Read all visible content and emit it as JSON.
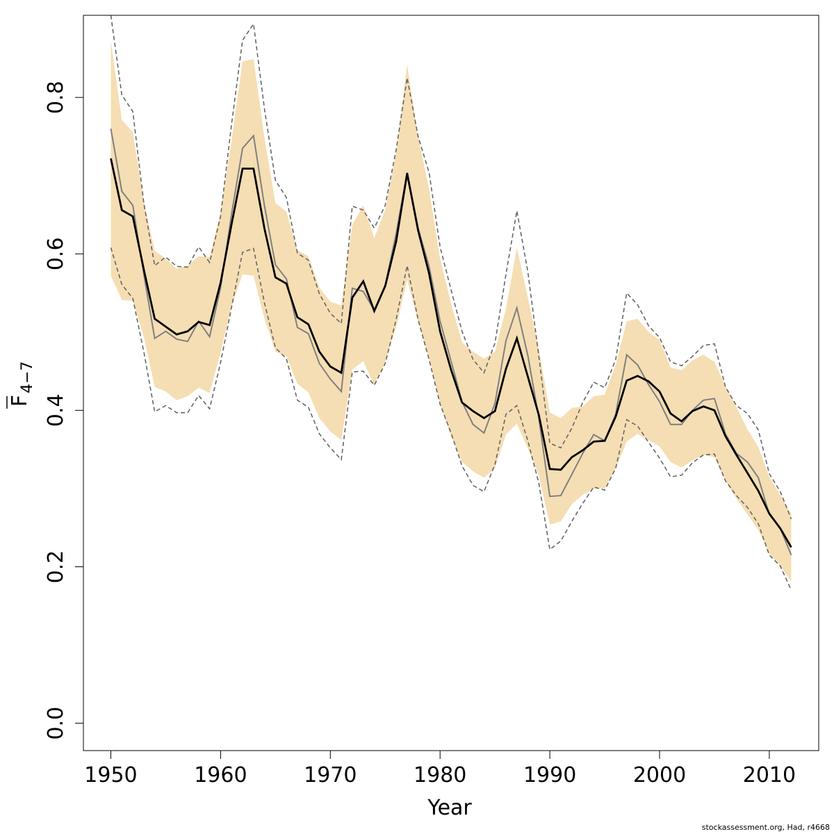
{
  "chart_data": {
    "type": "line",
    "xlabel": "Year",
    "ylabel_main": "F",
    "ylabel_sub": "4−7",
    "xlim": [
      1947.5,
      2014.5
    ],
    "ylim": [
      -0.035,
      0.905
    ],
    "x_ticks": [
      1950,
      1960,
      1970,
      1980,
      1990,
      2000,
      2010
    ],
    "x_tick_labels": [
      "1950",
      "1960",
      "1970",
      "1980",
      "1990",
      "2000",
      "2010"
    ],
    "y_ticks": [
      0.0,
      0.2,
      0.4,
      0.6,
      0.8
    ],
    "y_tick_labels": [
      "0.0",
      "0.2",
      "0.4",
      "0.6",
      "0.8"
    ],
    "colors": {
      "band": "#f5deb3",
      "estimate": "#000000",
      "alt": "#7f7f7f",
      "dashed": "#666666"
    },
    "years": [
      1950,
      1951,
      1952,
      1953,
      1954,
      1955,
      1956,
      1957,
      1958,
      1959,
      1960,
      1961,
      1962,
      1963,
      1964,
      1965,
      1966,
      1967,
      1968,
      1969,
      1970,
      1971,
      1972,
      1973,
      1974,
      1975,
      1976,
      1977,
      1978,
      1979,
      1980,
      1981,
      1982,
      1983,
      1984,
      1985,
      1986,
      1987,
      1988,
      1989,
      1990,
      1991,
      1992,
      1993,
      1994,
      1995,
      1996,
      1997,
      1998,
      1999,
      2000,
      2001,
      2002,
      2003,
      2004,
      2005,
      2006,
      2007,
      2008,
      2009,
      2010,
      2011,
      2012
    ],
    "series": [
      {
        "role": "estimate",
        "values": [
          0.722,
          0.656,
          0.648,
          0.58,
          0.517,
          0.507,
          0.497,
          0.501,
          0.513,
          0.509,
          0.563,
          0.638,
          0.709,
          0.709,
          0.632,
          0.57,
          0.562,
          0.519,
          0.51,
          0.475,
          0.456,
          0.448,
          0.544,
          0.565,
          0.527,
          0.559,
          0.616,
          0.703,
          0.63,
          0.575,
          0.501,
          0.452,
          0.41,
          0.399,
          0.39,
          0.399,
          0.453,
          0.492,
          0.443,
          0.394,
          0.325,
          0.324,
          0.34,
          0.349,
          0.36,
          0.361,
          0.392,
          0.438,
          0.444,
          0.437,
          0.424,
          0.396,
          0.386,
          0.399,
          0.405,
          0.4,
          0.367,
          0.343,
          0.32,
          0.297,
          0.268,
          0.249,
          0.225
        ]
      },
      {
        "role": "alt",
        "values": [
          0.76,
          0.68,
          0.662,
          0.574,
          0.492,
          0.501,
          0.491,
          0.488,
          0.514,
          0.494,
          0.557,
          0.651,
          0.735,
          0.751,
          0.661,
          0.586,
          0.568,
          0.506,
          0.498,
          0.46,
          0.44,
          0.424,
          0.556,
          0.552,
          0.528,
          0.56,
          0.626,
          0.704,
          0.633,
          0.584,
          0.514,
          0.463,
          0.411,
          0.382,
          0.371,
          0.409,
          0.489,
          0.531,
          0.47,
          0.39,
          0.29,
          0.291,
          0.318,
          0.345,
          0.369,
          0.361,
          0.395,
          0.471,
          0.458,
          0.433,
          0.411,
          0.382,
          0.382,
          0.4,
          0.413,
          0.415,
          0.37,
          0.345,
          0.334,
          0.314,
          0.267,
          0.249,
          0.215
        ]
      },
      {
        "role": "upper-ci",
        "values": [
          0.905,
          0.803,
          0.782,
          0.665,
          0.585,
          0.596,
          0.584,
          0.583,
          0.609,
          0.589,
          0.648,
          0.766,
          0.873,
          0.894,
          0.785,
          0.694,
          0.672,
          0.601,
          0.592,
          0.549,
          0.524,
          0.511,
          0.661,
          0.656,
          0.633,
          0.662,
          0.733,
          0.825,
          0.75,
          0.704,
          0.609,
          0.554,
          0.501,
          0.465,
          0.448,
          0.486,
          0.574,
          0.655,
          0.577,
          0.469,
          0.358,
          0.352,
          0.377,
          0.41,
          0.436,
          0.429,
          0.465,
          0.55,
          0.535,
          0.508,
          0.493,
          0.462,
          0.457,
          0.469,
          0.483,
          0.485,
          0.43,
          0.406,
          0.396,
          0.375,
          0.319,
          0.296,
          0.261
        ]
      },
      {
        "role": "lower-ci",
        "values": [
          0.608,
          0.561,
          0.543,
          0.475,
          0.398,
          0.406,
          0.397,
          0.397,
          0.419,
          0.402,
          0.461,
          0.532,
          0.602,
          0.607,
          0.537,
          0.48,
          0.466,
          0.413,
          0.404,
          0.37,
          0.352,
          0.337,
          0.449,
          0.45,
          0.432,
          0.46,
          0.516,
          0.585,
          0.516,
          0.465,
          0.408,
          0.371,
          0.329,
          0.304,
          0.296,
          0.331,
          0.395,
          0.406,
          0.361,
          0.307,
          0.222,
          0.233,
          0.258,
          0.281,
          0.302,
          0.298,
          0.326,
          0.388,
          0.38,
          0.359,
          0.339,
          0.315,
          0.317,
          0.333,
          0.343,
          0.344,
          0.31,
          0.291,
          0.276,
          0.255,
          0.215,
          0.201,
          0.17
        ]
      },
      {
        "role": "band-upper",
        "values": [
          0.872,
          0.771,
          0.756,
          0.667,
          0.604,
          0.594,
          0.581,
          0.585,
          0.597,
          0.596,
          0.653,
          0.745,
          0.846,
          0.849,
          0.748,
          0.665,
          0.654,
          0.605,
          0.597,
          0.557,
          0.539,
          0.534,
          0.637,
          0.662,
          0.62,
          0.656,
          0.729,
          0.842,
          0.75,
          0.683,
          0.594,
          0.537,
          0.487,
          0.475,
          0.466,
          0.475,
          0.53,
          0.608,
          0.544,
          0.479,
          0.397,
          0.39,
          0.403,
          0.405,
          0.418,
          0.42,
          0.458,
          0.514,
          0.517,
          0.5,
          0.49,
          0.455,
          0.451,
          0.464,
          0.471,
          0.462,
          0.431,
          0.404,
          0.376,
          0.353,
          0.315,
          0.292,
          0.267
        ]
      },
      {
        "role": "band-lower",
        "values": [
          0.572,
          0.541,
          0.54,
          0.494,
          0.43,
          0.424,
          0.413,
          0.418,
          0.429,
          0.422,
          0.474,
          0.533,
          0.574,
          0.572,
          0.517,
          0.475,
          0.469,
          0.434,
          0.423,
          0.39,
          0.373,
          0.362,
          0.452,
          0.463,
          0.432,
          0.462,
          0.506,
          0.567,
          0.513,
          0.467,
          0.408,
          0.367,
          0.334,
          0.322,
          0.314,
          0.326,
          0.369,
          0.383,
          0.351,
          0.317,
          0.254,
          0.258,
          0.28,
          0.292,
          0.3,
          0.3,
          0.326,
          0.36,
          0.37,
          0.362,
          0.354,
          0.334,
          0.327,
          0.336,
          0.343,
          0.34,
          0.31,
          0.287,
          0.267,
          0.247,
          0.217,
          0.201,
          0.181
        ]
      }
    ]
  },
  "footer_text": "stockassessment.org, Had, r4668"
}
